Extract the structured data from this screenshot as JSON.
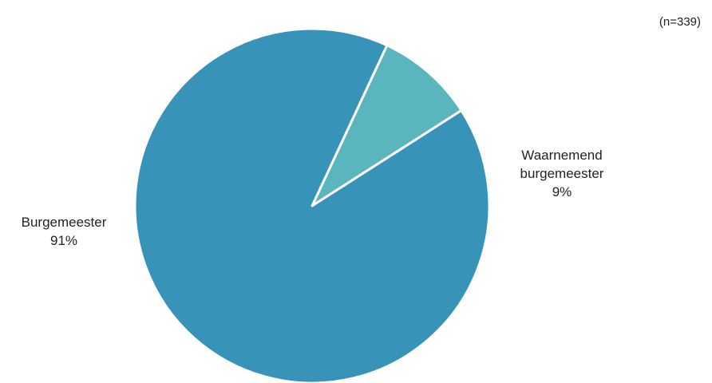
{
  "chart_data": {
    "type": "pie",
    "note": "(n=339)",
    "slices": [
      {
        "name": "Waarnemend burgemeester",
        "name_lines": [
          "Waarnemend",
          "burgemeester"
        ],
        "value": 9,
        "value_label": "9%",
        "color": "#5bb5bf"
      },
      {
        "name": "Burgemeester",
        "name_lines": [
          "Burgemeester"
        ],
        "value": 91,
        "value_label": "91%",
        "color": "#3793b8"
      }
    ],
    "start_angle_deg": 65,
    "legend": "none",
    "slice_border_color": "#ffffff"
  }
}
